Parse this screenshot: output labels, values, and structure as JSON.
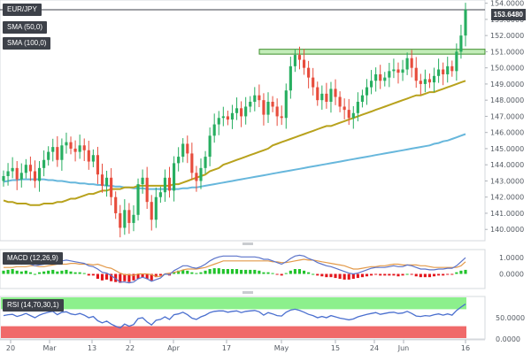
{
  "labels": {
    "symbol": "EUR/JPY",
    "sma1": "SMA (50,0)",
    "sma2": "SMA (100,0)",
    "macd": "MACD (12,26,9)",
    "rsi": "RSI (14,70,30,1)",
    "last_price": "153.6480"
  },
  "colors": {
    "up": "#27ae60",
    "down": "#e74c3c",
    "sma50": "#b8a21d",
    "sma100": "#67b7dc",
    "macd": "#5b73c9",
    "signal": "#e39a4a",
    "rsi_overbought": "#8cf08c",
    "rsi_oversold": "#f06a6a",
    "resistance": "#9be08a"
  },
  "chart_data": {
    "type": "candlestick",
    "y_ticks": [
      "154.0000",
      "153.0000",
      "152.0000",
      "151.0000",
      "150.0000",
      "149.0000",
      "148.0000",
      "147.0000",
      "146.0000",
      "145.0000",
      "144.0000",
      "143.0000",
      "142.0000",
      "141.0000",
      "140.0000"
    ],
    "x_ticks": [
      "20",
      "Mar",
      "13",
      "22",
      "Apr",
      "17",
      "May",
      "15",
      "24",
      "Jun",
      "16"
    ],
    "ylim": [
      139.3,
      154.2
    ],
    "resistance_zone": [
      150.85,
      151.15
    ],
    "closes": [
      143.3,
      143.6,
      143.8,
      143.1,
      143.5,
      144.0,
      143.6,
      143.0,
      143.8,
      144.3,
      144.8,
      145.1,
      144.3,
      145.2,
      145.4,
      145.0,
      144.8,
      145.2,
      144.9,
      144.2,
      144.6,
      143.4,
      142.7,
      143.2,
      142.0,
      141.0,
      140.1,
      141.2,
      140.4,
      140.9,
      142.8,
      143.2,
      141.7,
      140.6,
      142.0,
      142.3,
      143.2,
      142.4,
      144.1,
      144.5,
      145.3,
      144.7,
      143.5,
      143.0,
      143.8,
      144.5,
      145.8,
      146.5,
      146.9,
      147.0,
      146.8,
      147.2,
      147.5,
      147.0,
      147.6,
      147.9,
      148.3,
      148.0,
      147.1,
      147.9,
      147.6,
      147.0,
      146.9,
      148.6,
      150.1,
      150.8,
      150.5,
      150.0,
      149.4,
      148.8,
      148.0,
      148.4,
      147.9,
      148.7,
      148.2,
      147.6,
      147.4,
      146.9,
      147.2,
      147.9,
      148.3,
      148.8,
      149.2,
      149.6,
      149.2,
      149.4,
      149.8,
      149.9,
      149.7,
      149.9,
      150.6,
      150.0,
      149.2,
      149.0,
      149.3,
      149.1,
      149.5,
      149.9,
      149.6,
      150.1,
      149.8,
      151.0,
      152.0,
      153.6
    ],
    "sma50": [
      141.8,
      141.7,
      141.7,
      141.6,
      141.6,
      141.6,
      141.5,
      141.5,
      141.5,
      141.6,
      141.6,
      141.6,
      141.7,
      141.7,
      141.8,
      141.9,
      141.9,
      142.0,
      142.1,
      142.2,
      142.2,
      142.3,
      142.4,
      142.4,
      142.5,
      142.5,
      142.5,
      142.6,
      142.6,
      142.6,
      142.7,
      142.7,
      142.7,
      142.7,
      142.7,
      142.7,
      142.7,
      142.7,
      142.8,
      142.8,
      142.9,
      143.0,
      143.1,
      143.2,
      143.3,
      143.4,
      143.6,
      143.7,
      143.8,
      144.0,
      144.1,
      144.2,
      144.3,
      144.4,
      144.5,
      144.6,
      144.7,
      144.8,
      144.9,
      145.0,
      145.2,
      145.3,
      145.4,
      145.5,
      145.6,
      145.7,
      145.8,
      145.9,
      146.0,
      146.1,
      146.2,
      146.3,
      146.4,
      146.4,
      146.5,
      146.6,
      146.7,
      146.8,
      146.9,
      147.0,
      147.1,
      147.2,
      147.3,
      147.4,
      147.5,
      147.6,
      147.7,
      147.8,
      147.9,
      148.0,
      148.1,
      148.2,
      148.3,
      148.3,
      148.4,
      148.5,
      148.5,
      148.6,
      148.7,
      148.8,
      148.9,
      149.0,
      149.1,
      149.2
    ],
    "sma100": [
      142.95,
      143.0,
      143.05,
      143.05,
      143.1,
      143.1,
      143.1,
      143.1,
      143.1,
      143.1,
      143.05,
      143.05,
      143.0,
      143.0,
      142.95,
      142.9,
      142.9,
      142.85,
      142.85,
      142.8,
      142.8,
      142.75,
      142.75,
      142.7,
      142.7,
      142.65,
      142.65,
      142.6,
      142.6,
      142.55,
      142.55,
      142.55,
      142.5,
      142.5,
      142.5,
      142.5,
      142.5,
      142.5,
      142.5,
      142.5,
      142.55,
      142.55,
      142.6,
      142.6,
      142.65,
      142.7,
      142.75,
      142.8,
      142.85,
      142.9,
      142.95,
      143.0,
      143.05,
      143.1,
      143.15,
      143.2,
      143.25,
      143.3,
      143.35,
      143.4,
      143.45,
      143.5,
      143.55,
      143.6,
      143.65,
      143.7,
      143.75,
      143.8,
      143.85,
      143.9,
      143.95,
      144.0,
      144.05,
      144.1,
      144.15,
      144.2,
      144.25,
      144.3,
      144.35,
      144.4,
      144.45,
      144.5,
      144.55,
      144.6,
      144.65,
      144.7,
      144.75,
      144.8,
      144.85,
      144.9,
      144.95,
      145.0,
      145.05,
      145.1,
      145.15,
      145.2,
      145.3,
      145.35,
      145.45,
      145.5,
      145.6,
      145.7,
      145.8,
      145.9
    ],
    "macd": {
      "y_ticks": [
        "1.0000",
        "0.0000"
      ],
      "ylim": [
        -0.9,
        1.5
      ],
      "hist": [
        0.2,
        0.25,
        0.3,
        0.2,
        0.15,
        0.2,
        0.1,
        0.0,
        0.1,
        0.15,
        0.2,
        0.25,
        0.15,
        0.2,
        0.25,
        0.15,
        0.1,
        0.1,
        0.05,
        -0.1,
        -0.1,
        -0.3,
        -0.4,
        -0.35,
        -0.45,
        -0.5,
        -0.55,
        -0.45,
        -0.5,
        -0.4,
        -0.3,
        -0.2,
        -0.3,
        -0.4,
        -0.2,
        -0.1,
        0.0,
        -0.1,
        0.1,
        0.2,
        0.25,
        0.2,
        0.1,
        0.05,
        0.1,
        0.2,
        0.3,
        0.35,
        0.35,
        0.3,
        0.3,
        0.3,
        0.3,
        0.25,
        0.25,
        0.25,
        0.25,
        0.2,
        0.1,
        0.1,
        0.05,
        -0.05,
        -0.1,
        0.05,
        0.2,
        0.3,
        0.3,
        0.2,
        0.1,
        0.0,
        -0.1,
        -0.15,
        -0.2,
        -0.2,
        -0.25,
        -0.3,
        -0.35,
        -0.35,
        -0.3,
        -0.25,
        -0.2,
        -0.15,
        -0.1,
        -0.05,
        -0.1,
        -0.1,
        -0.1,
        -0.1,
        -0.15,
        -0.1,
        0.0,
        -0.05,
        -0.15,
        -0.2,
        -0.2,
        -0.2,
        -0.15,
        -0.1,
        -0.1,
        -0.05,
        -0.05,
        0.1,
        0.2,
        0.25
      ],
      "macd_line": [
        0.6,
        0.65,
        0.7,
        0.65,
        0.6,
        0.65,
        0.6,
        0.5,
        0.55,
        0.6,
        0.7,
        0.8,
        0.75,
        0.8,
        0.85,
        0.8,
        0.75,
        0.7,
        0.65,
        0.5,
        0.45,
        0.3,
        0.1,
        0.05,
        -0.1,
        -0.3,
        -0.5,
        -0.5,
        -0.55,
        -0.5,
        -0.3,
        -0.2,
        -0.3,
        -0.45,
        -0.35,
        -0.25,
        0.0,
        -0.05,
        0.2,
        0.35,
        0.5,
        0.5,
        0.4,
        0.35,
        0.45,
        0.6,
        0.8,
        0.95,
        1.05,
        1.1,
        1.1,
        1.1,
        1.1,
        1.05,
        1.05,
        1.05,
        1.05,
        1.0,
        0.9,
        0.9,
        0.8,
        0.7,
        0.6,
        0.75,
        0.95,
        1.1,
        1.15,
        1.1,
        0.95,
        0.85,
        0.7,
        0.6,
        0.5,
        0.45,
        0.35,
        0.25,
        0.15,
        0.05,
        0.0,
        0.05,
        0.15,
        0.25,
        0.35,
        0.4,
        0.4,
        0.4,
        0.45,
        0.5,
        0.45,
        0.45,
        0.55,
        0.5,
        0.4,
        0.3,
        0.3,
        0.25,
        0.25,
        0.3,
        0.3,
        0.35,
        0.35,
        0.5,
        0.75,
        1.0
      ],
      "signal_line": [
        0.4,
        0.4,
        0.4,
        0.45,
        0.45,
        0.45,
        0.5,
        0.5,
        0.45,
        0.45,
        0.5,
        0.55,
        0.6,
        0.6,
        0.6,
        0.65,
        0.65,
        0.6,
        0.6,
        0.6,
        0.55,
        0.6,
        0.5,
        0.4,
        0.35,
        0.2,
        0.05,
        -0.05,
        -0.05,
        -0.1,
        0.0,
        0.0,
        0.0,
        -0.05,
        -0.15,
        -0.15,
        0.0,
        0.05,
        0.1,
        0.15,
        0.25,
        0.3,
        0.3,
        0.3,
        0.35,
        0.4,
        0.5,
        0.6,
        0.7,
        0.8,
        0.8,
        0.8,
        0.8,
        0.8,
        0.8,
        0.8,
        0.8,
        0.8,
        0.8,
        0.8,
        0.75,
        0.75,
        0.7,
        0.7,
        0.75,
        0.8,
        0.85,
        0.9,
        0.85,
        0.85,
        0.8,
        0.75,
        0.7,
        0.65,
        0.6,
        0.55,
        0.5,
        0.4,
        0.3,
        0.3,
        0.35,
        0.4,
        0.45,
        0.45,
        0.5,
        0.5,
        0.55,
        0.6,
        0.6,
        0.55,
        0.55,
        0.55,
        0.55,
        0.5,
        0.5,
        0.45,
        0.4,
        0.4,
        0.4,
        0.4,
        0.4,
        0.4,
        0.5,
        0.75
      ]
    },
    "rsi": {
      "y_ticks": [
        "50.0000",
        "0.0000"
      ],
      "ylim": [
        0,
        100
      ],
      "values": [
        55,
        57,
        58,
        53,
        56,
        60,
        55,
        50,
        56,
        60,
        63,
        65,
        57,
        63,
        64,
        59,
        57,
        60,
        56,
        50,
        53,
        43,
        38,
        42,
        35,
        30,
        26,
        35,
        30,
        34,
        48,
        50,
        40,
        33,
        44,
        46,
        52,
        46,
        57,
        59,
        63,
        57,
        49,
        46,
        52,
        56,
        62,
        65,
        66,
        66,
        63,
        65,
        66,
        62,
        65,
        66,
        67,
        64,
        56,
        62,
        59,
        55,
        54,
        63,
        68,
        70,
        67,
        63,
        58,
        55,
        50,
        53,
        50,
        55,
        52,
        49,
        47,
        45,
        47,
        52,
        55,
        58,
        60,
        62,
        58,
        60,
        62,
        63,
        60,
        61,
        65,
        60,
        54,
        53,
        55,
        54,
        57,
        59,
        56,
        59,
        56,
        67,
        75,
        82
      ]
    }
  }
}
